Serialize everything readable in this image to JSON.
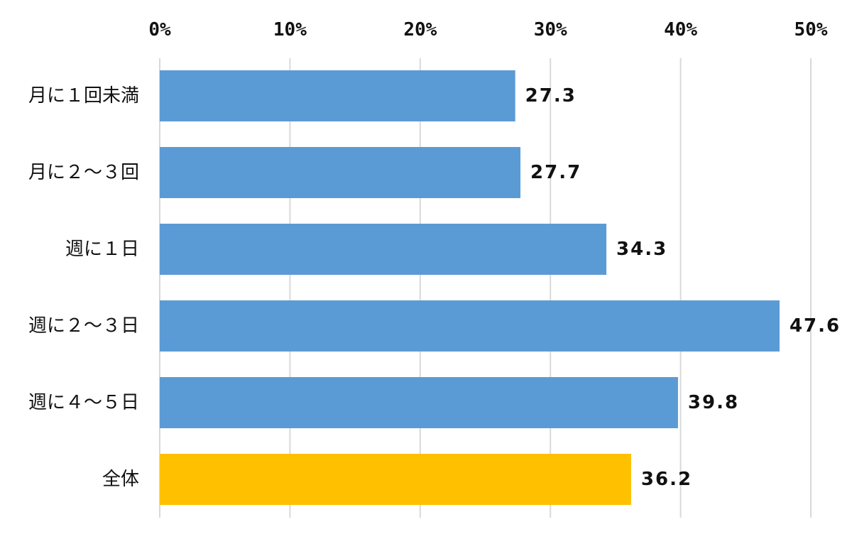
{
  "chart_data": {
    "type": "bar",
    "orientation": "horizontal",
    "categories": [
      "月に１回未満",
      "月に２～３回",
      "週に１日",
      "週に２～３日",
      "週に４～５日",
      "全体"
    ],
    "values": [
      27.3,
      27.7,
      34.3,
      47.6,
      39.8,
      36.2
    ],
    "data_labels": [
      "27.3",
      "27.7",
      "34.3",
      "47.6",
      "39.8",
      "36.2"
    ],
    "bar_colors": [
      "#5b9bd5",
      "#5b9bd5",
      "#5b9bd5",
      "#5b9bd5",
      "#5b9bd5",
      "#ffc000"
    ],
    "xlim": [
      0,
      50
    ],
    "x_ticks": [
      0,
      10,
      20,
      30,
      40,
      50
    ],
    "x_tick_labels": [
      "0%",
      "10%",
      "20%",
      "30%",
      "40%",
      "50%"
    ],
    "x_axis_position": "top",
    "grid": true,
    "title": "",
    "xlabel": "",
    "ylabel": ""
  }
}
